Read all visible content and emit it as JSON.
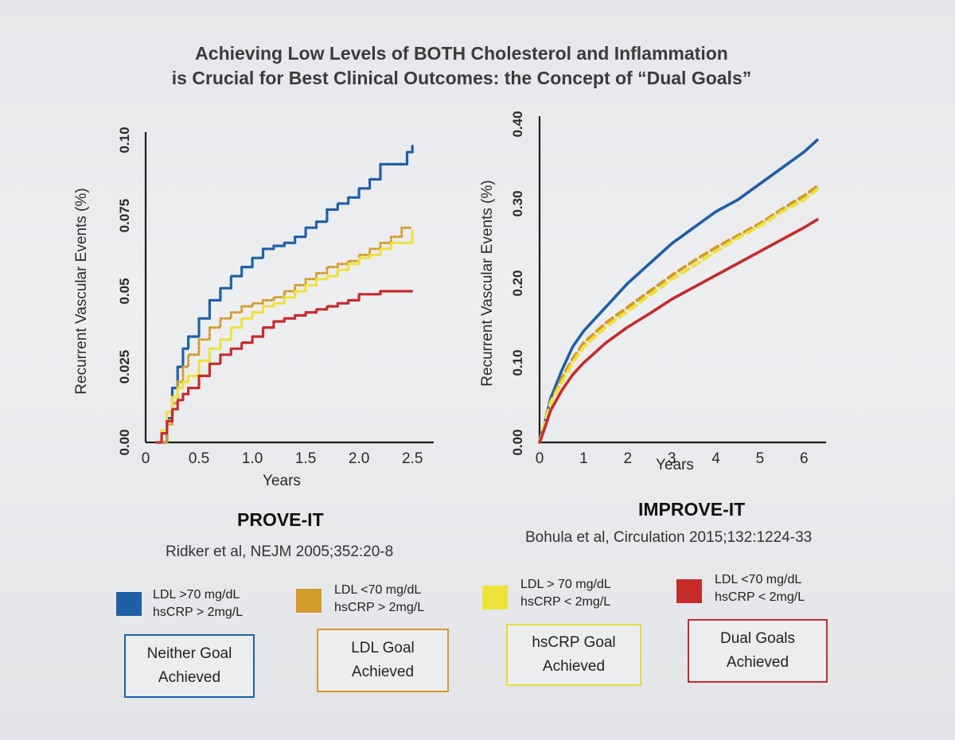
{
  "title": {
    "line1": "Achieving Low Levels of BOTH Cholesterol and Inflammation",
    "line2": "is Crucial for Best Clinical Outcomes: the Concept of “Dual Goals”"
  },
  "colors": {
    "blue": "#1f5fa6",
    "orange": "#d49a2a",
    "yellow": "#eee23a",
    "red": "#c62b2b"
  },
  "chart_data": [
    {
      "type": "line",
      "title": "PROVE-IT",
      "citation": "Ridker et al, NEJM 2005;352:20-8",
      "xlabel": "Years",
      "ylabel": "Recurrent Vascular Events (%)",
      "xlim": [
        0,
        2.7
      ],
      "ylim": [
        0,
        0.1
      ],
      "x_ticks": [
        "0",
        "0.5",
        "1.0",
        "1.5",
        "2.0",
        "2.5"
      ],
      "x_tick_values": [
        0,
        0.5,
        1.0,
        1.5,
        2.0,
        2.5
      ],
      "y_ticks": [
        "0.00",
        "0.025",
        "0.05",
        "0.075",
        "0.10"
      ],
      "y_tick_values": [
        0,
        0.025,
        0.05,
        0.075,
        0.1
      ],
      "grid": false,
      "series": [
        {
          "color": "blue",
          "dash": "step",
          "x": [
            0.15,
            0.2,
            0.25,
            0.3,
            0.35,
            0.4,
            0.5,
            0.6,
            0.7,
            0.8,
            0.9,
            1.0,
            1.1,
            1.2,
            1.3,
            1.4,
            1.5,
            1.6,
            1.7,
            1.8,
            1.9,
            2.0,
            2.1,
            2.2,
            2.3,
            2.4,
            2.45,
            2.5
          ],
          "y": [
            0.0,
            0.008,
            0.018,
            0.025,
            0.031,
            0.035,
            0.041,
            0.047,
            0.051,
            0.055,
            0.058,
            0.061,
            0.064,
            0.065,
            0.066,
            0.068,
            0.071,
            0.073,
            0.077,
            0.079,
            0.081,
            0.084,
            0.087,
            0.092,
            0.092,
            0.092,
            0.096,
            0.098
          ]
        },
        {
          "color": "orange",
          "dash": "dotted",
          "x": [
            0.15,
            0.2,
            0.25,
            0.3,
            0.35,
            0.4,
            0.5,
            0.6,
            0.7,
            0.8,
            0.9,
            1.0,
            1.1,
            1.2,
            1.3,
            1.4,
            1.5,
            1.6,
            1.7,
            1.8,
            1.9,
            2.0,
            2.1,
            2.2,
            2.3,
            2.4,
            2.5
          ],
          "y": [
            0.0,
            0.006,
            0.013,
            0.02,
            0.025,
            0.029,
            0.034,
            0.038,
            0.041,
            0.043,
            0.045,
            0.046,
            0.047,
            0.048,
            0.05,
            0.052,
            0.054,
            0.056,
            0.058,
            0.059,
            0.06,
            0.062,
            0.064,
            0.066,
            0.068,
            0.071,
            0.071
          ]
        },
        {
          "color": "yellow",
          "dash": "solid-step",
          "x": [
            0.1,
            0.15,
            0.2,
            0.25,
            0.3,
            0.35,
            0.4,
            0.5,
            0.6,
            0.7,
            0.8,
            0.9,
            1.0,
            1.1,
            1.2,
            1.3,
            1.4,
            1.5,
            1.6,
            1.7,
            1.8,
            1.9,
            2.0,
            2.1,
            2.2,
            2.3,
            2.4,
            2.5
          ],
          "y": [
            0.0,
            0.004,
            0.01,
            0.015,
            0.018,
            0.02,
            0.022,
            0.027,
            0.031,
            0.034,
            0.038,
            0.041,
            0.043,
            0.045,
            0.046,
            0.048,
            0.05,
            0.052,
            0.054,
            0.055,
            0.057,
            0.059,
            0.061,
            0.062,
            0.064,
            0.066,
            0.066,
            0.07
          ]
        },
        {
          "color": "red",
          "dash": "step",
          "x": [
            0.1,
            0.15,
            0.2,
            0.25,
            0.3,
            0.35,
            0.4,
            0.5,
            0.6,
            0.7,
            0.8,
            0.9,
            1.0,
            1.1,
            1.2,
            1.3,
            1.4,
            1.5,
            1.6,
            1.7,
            1.8,
            1.9,
            2.0,
            2.1,
            2.2,
            2.3,
            2.4,
            2.5
          ],
          "y": [
            0.0,
            0.003,
            0.007,
            0.011,
            0.014,
            0.016,
            0.018,
            0.022,
            0.026,
            0.029,
            0.031,
            0.033,
            0.035,
            0.038,
            0.04,
            0.041,
            0.042,
            0.043,
            0.044,
            0.045,
            0.046,
            0.047,
            0.049,
            0.049,
            0.05,
            0.05,
            0.05,
            0.05
          ]
        }
      ]
    },
    {
      "type": "line",
      "title": "IMPROVE-IT",
      "citation": "Bohula et al, Circulation 2015;132:1224-33",
      "xlabel": "Years",
      "ylabel": "Recurrent Vascular Events (%)",
      "xlim": [
        0,
        6.5
      ],
      "ylim": [
        0,
        0.4
      ],
      "x_ticks": [
        "0",
        "1",
        "2",
        "3",
        "4",
        "5",
        "6"
      ],
      "x_tick_values": [
        0,
        1,
        2,
        3,
        4,
        5,
        6
      ],
      "y_ticks": [
        "0.00",
        "0.10",
        "0.20",
        "0.30",
        "0.40"
      ],
      "y_tick_values": [
        0,
        0.1,
        0.2,
        0.3,
        0.4
      ],
      "grid": false,
      "series": [
        {
          "color": "blue",
          "dash": "solid",
          "x": [
            0,
            0.1,
            0.25,
            0.5,
            0.75,
            1,
            1.5,
            2,
            2.5,
            3,
            3.5,
            4,
            4.5,
            5,
            5.5,
            6,
            6.3
          ],
          "y": [
            0,
            0.02,
            0.055,
            0.09,
            0.12,
            0.14,
            0.17,
            0.2,
            0.225,
            0.25,
            0.27,
            0.29,
            0.305,
            0.325,
            0.345,
            0.365,
            0.38
          ]
        },
        {
          "color": "orange",
          "dash": "dashed",
          "x": [
            0,
            0.1,
            0.25,
            0.5,
            0.75,
            1,
            1.5,
            2,
            2.5,
            3,
            3.5,
            4,
            4.5,
            5,
            5.5,
            6,
            6.3
          ],
          "y": [
            0,
            0.02,
            0.05,
            0.08,
            0.105,
            0.125,
            0.15,
            0.17,
            0.19,
            0.21,
            0.228,
            0.245,
            0.26,
            0.275,
            0.293,
            0.31,
            0.322
          ]
        },
        {
          "color": "yellow",
          "dash": "dashed",
          "x": [
            0,
            0.1,
            0.25,
            0.5,
            0.75,
            1,
            1.5,
            2,
            2.5,
            3,
            3.5,
            4,
            4.5,
            5,
            5.5,
            6,
            6.3
          ],
          "y": [
            0,
            0.02,
            0.05,
            0.075,
            0.1,
            0.12,
            0.145,
            0.165,
            0.185,
            0.205,
            0.222,
            0.24,
            0.257,
            0.272,
            0.29,
            0.305,
            0.318
          ]
        },
        {
          "color": "red",
          "dash": "solid",
          "x": [
            0,
            0.1,
            0.25,
            0.5,
            0.75,
            1,
            1.5,
            2,
            2.5,
            3,
            3.5,
            4,
            4.5,
            5,
            5.5,
            6,
            6.3
          ],
          "y": [
            0,
            0.015,
            0.04,
            0.065,
            0.085,
            0.1,
            0.125,
            0.145,
            0.162,
            0.18,
            0.195,
            0.21,
            0.225,
            0.24,
            0.255,
            0.27,
            0.28
          ]
        }
      ]
    }
  ],
  "legend": [
    {
      "color": "blue",
      "line1": "LDL >70 mg/dL",
      "line2": "hsCRP > 2mg/L",
      "goal_line1": "Neither Goal",
      "goal_line2": "Achieved"
    },
    {
      "color": "orange",
      "line1": "LDL <70 mg/dL",
      "line2": "hsCRP > 2mg/L",
      "goal_line1": "LDL Goal",
      "goal_line2": "Achieved"
    },
    {
      "color": "yellow",
      "line1": "LDL > 70 mg/dL",
      "line2": "hsCRP < 2mg/L",
      "goal_line1": "hsCRP Goal",
      "goal_line2": "Achieved"
    },
    {
      "color": "red",
      "line1": "LDL <70 mg/dL",
      "line2": "hsCRP < 2mg/L",
      "goal_line1": "Dual Goals",
      "goal_line2": "Achieved"
    }
  ]
}
